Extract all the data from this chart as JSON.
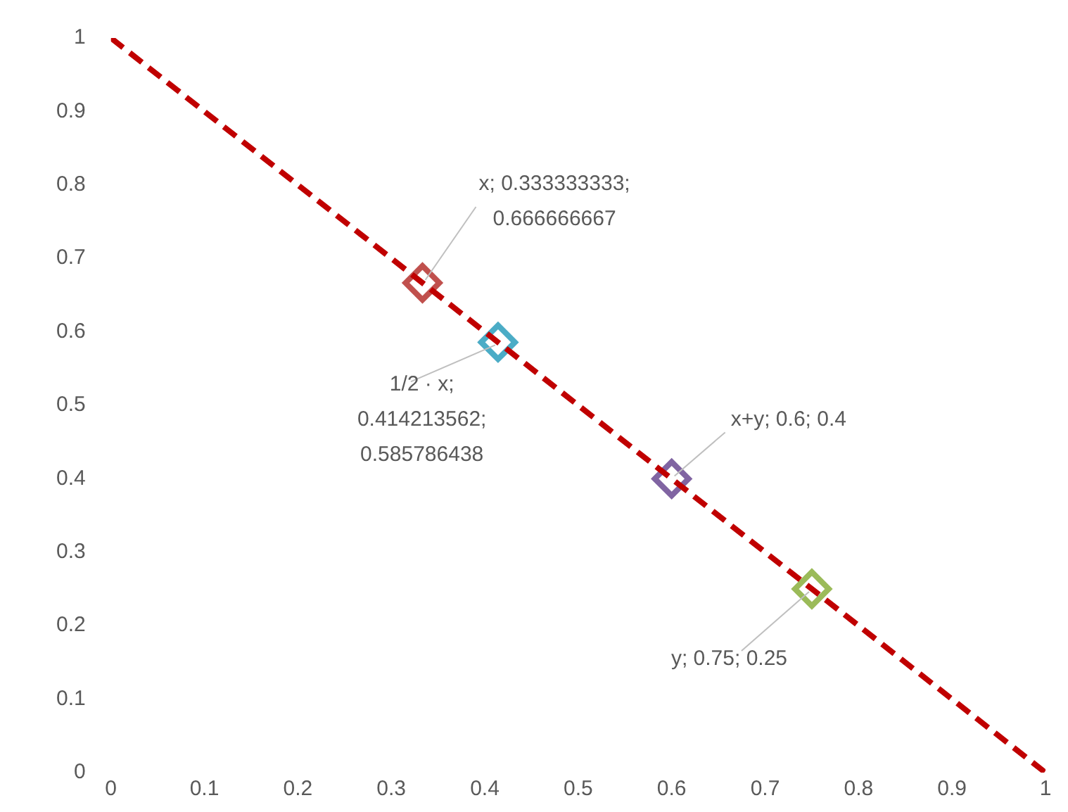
{
  "chart_data": {
    "type": "scatter",
    "xlim": [
      0,
      1
    ],
    "xticks": [
      0,
      0.1,
      0.2,
      0.3,
      0.4,
      0.5,
      0.6,
      0.7,
      0.8,
      0.9,
      1
    ],
    "ylim": [
      0,
      1
    ],
    "yticks": [
      0,
      0.1,
      0.2,
      0.3,
      0.4,
      0.5,
      0.6,
      0.7,
      0.8,
      0.9,
      1
    ],
    "grid": false,
    "marker": "diamond",
    "series": [
      {
        "type": "line",
        "x": [
          0,
          1
        ],
        "values": [
          1,
          0
        ],
        "color": "#c00000",
        "line_style": "dashed",
        "marker": "none"
      },
      {
        "x": [
          0.333333333,
          0.414213562,
          0.6,
          0.75
        ],
        "values": [
          0.666666667,
          0.585786438,
          0.4,
          0.25
        ],
        "colors": [
          "#c0504d",
          "#4bacc6",
          "#8064a2",
          "#9bbb59"
        ]
      }
    ],
    "annotations": [
      {
        "text": "x; 0.333333333; 0.666666667",
        "x": 0.333333333,
        "y": 0.666666667
      },
      {
        "text": "1/2 · x; 0.414213562; 0.585786438",
        "x": 0.414213562,
        "y": 0.585786438
      },
      {
        "text": "x+y; 0.6; 0.4",
        "x": 0.6,
        "y": 0.4
      },
      {
        "text": "y; 0.75; 0.25",
        "x": 0.75,
        "y": 0.25
      }
    ]
  }
}
